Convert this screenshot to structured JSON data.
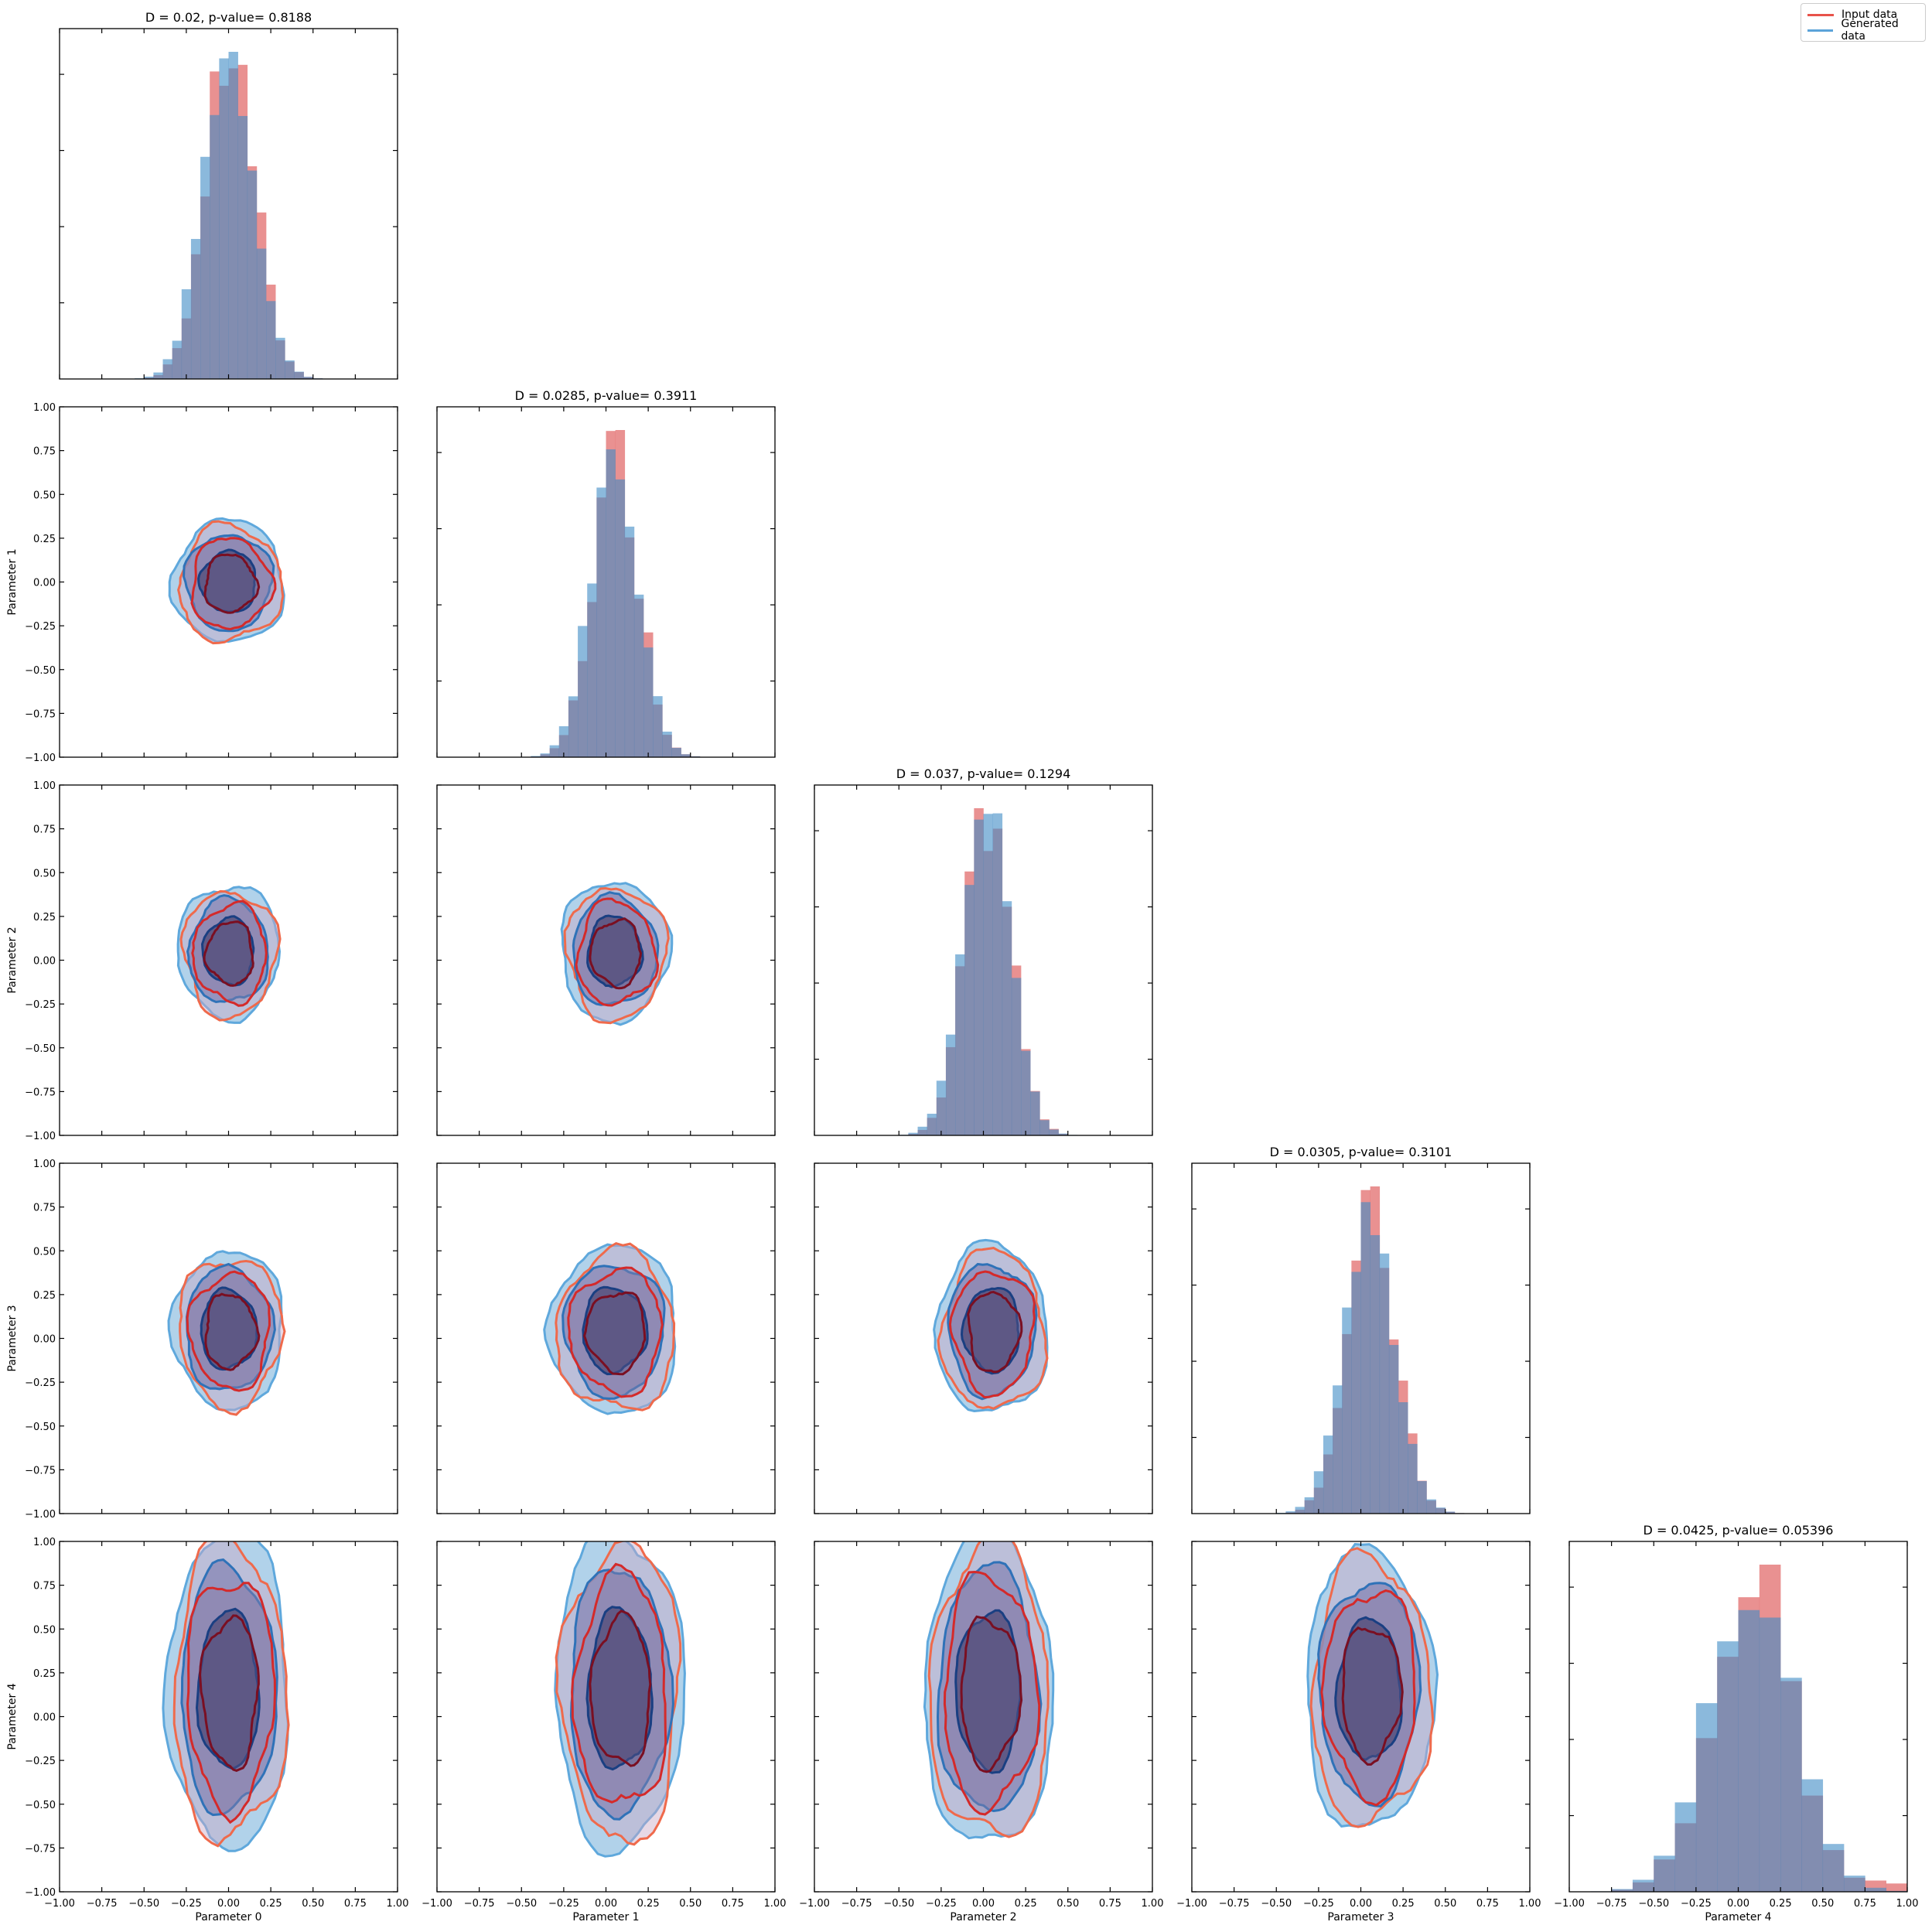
{
  "chart_data": {
    "type": "corner-plot",
    "xlim": [
      -1.0,
      1.0
    ],
    "ylim": [
      -1.0,
      1.0
    ],
    "tick_values": [
      -1.0,
      -0.75,
      -0.5,
      -0.25,
      0.0,
      0.25,
      0.5,
      0.75,
      1.0
    ],
    "tick_labels": [
      "−1.00",
      "−0.75",
      "−0.50",
      "−0.25",
      "0.00",
      "0.25",
      "0.50",
      "0.75",
      "1.00"
    ],
    "parameters": [
      "Parameter 0",
      "Parameter 1",
      "Parameter 2",
      "Parameter 3",
      "Parameter 4"
    ],
    "legend": [
      {
        "label": "Input data",
        "color": "#e8534a"
      },
      {
        "label": "Generated data",
        "color": "#5ba3d9"
      }
    ],
    "colors": {
      "input_fill": "#e06666",
      "generated_fill": "#3d8ac4",
      "input_line": "#e8534a",
      "generated_line": "#4f9fd6"
    },
    "histograms": [
      {
        "title": "D = 0.02, p-value= 0.8188",
        "mean": 0.0,
        "sd": 0.15,
        "input_skew": 0.0
      },
      {
        "title": "D = 0.0285, p-value= 0.3911",
        "mean": 0.05,
        "sd": 0.14,
        "input_skew": 0.0
      },
      {
        "title": "D = 0.037, p-value= 0.1294",
        "mean": 0.02,
        "sd": 0.14,
        "input_skew": 0.0
      },
      {
        "title": "D = 0.0305, p-value= 0.3101",
        "mean": 0.05,
        "sd": 0.15,
        "input_skew": 0.0
      },
      {
        "title": "D = 0.0425, p-value= 0.05396",
        "mean": 0.08,
        "sd": 0.25,
        "input_skew": 0.3
      }
    ],
    "contours": [
      {
        "row": 1,
        "col": 0,
        "cx": 0.0,
        "cy": 0.0,
        "rx": 0.33,
        "ry": 0.35
      },
      {
        "row": 2,
        "col": 0,
        "cx": 0.0,
        "cy": 0.05,
        "rx": 0.3,
        "ry": 0.38
      },
      {
        "row": 2,
        "col": 1,
        "cx": 0.05,
        "cy": 0.05,
        "rx": 0.32,
        "ry": 0.4
      },
      {
        "row": 3,
        "col": 0,
        "cx": 0.0,
        "cy": 0.05,
        "rx": 0.33,
        "ry": 0.45
      },
      {
        "row": 3,
        "col": 1,
        "cx": 0.05,
        "cy": 0.05,
        "rx": 0.38,
        "ry": 0.48
      },
      {
        "row": 3,
        "col": 2,
        "cx": 0.05,
        "cy": 0.05,
        "rx": 0.33,
        "ry": 0.48
      },
      {
        "row": 4,
        "col": 0,
        "cx": 0.0,
        "cy": 0.15,
        "rx": 0.36,
        "ry": 0.9
      },
      {
        "row": 4,
        "col": 1,
        "cx": 0.08,
        "cy": 0.15,
        "rx": 0.38,
        "ry": 0.9
      },
      {
        "row": 4,
        "col": 2,
        "cx": 0.03,
        "cy": 0.15,
        "rx": 0.38,
        "ry": 0.9
      },
      {
        "row": 4,
        "col": 3,
        "cx": 0.05,
        "cy": 0.15,
        "rx": 0.38,
        "ry": 0.8
      }
    ]
  }
}
